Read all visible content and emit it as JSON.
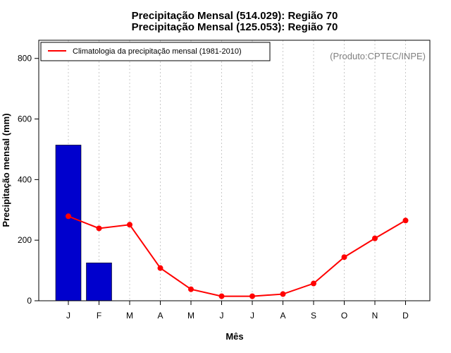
{
  "chart_data": {
    "type": "bar",
    "title": [
      "Precipitação Mensal (514.029): Região 70",
      "Precipitação Mensal (125.053): Região 70"
    ],
    "xlabel": "Mês",
    "ylabel": "Precipitação mensal (mm)",
    "credit": "(Produto:CPTEC/INPE)",
    "categories": [
      "J",
      "F",
      "M",
      "A",
      "M",
      "J",
      "J",
      "A",
      "S",
      "O",
      "N",
      "D"
    ],
    "ylim": [
      0,
      860
    ],
    "yticks": [
      0,
      200,
      400,
      600,
      800
    ],
    "grid": "vertical dotted",
    "legend_position": "top-left",
    "series": [
      {
        "type": "bar",
        "values": [
          514.029,
          125.053,
          null,
          null,
          null,
          null,
          null,
          null,
          null,
          null,
          null,
          null
        ],
        "color": "#0000cd"
      },
      {
        "type": "line",
        "name": "Climatologia da precipitação mensal (1981-2010)",
        "values": [
          279,
          239,
          251,
          108,
          38,
          15,
          15,
          22,
          57,
          144,
          206,
          265
        ],
        "color": "#ff0000"
      }
    ]
  }
}
